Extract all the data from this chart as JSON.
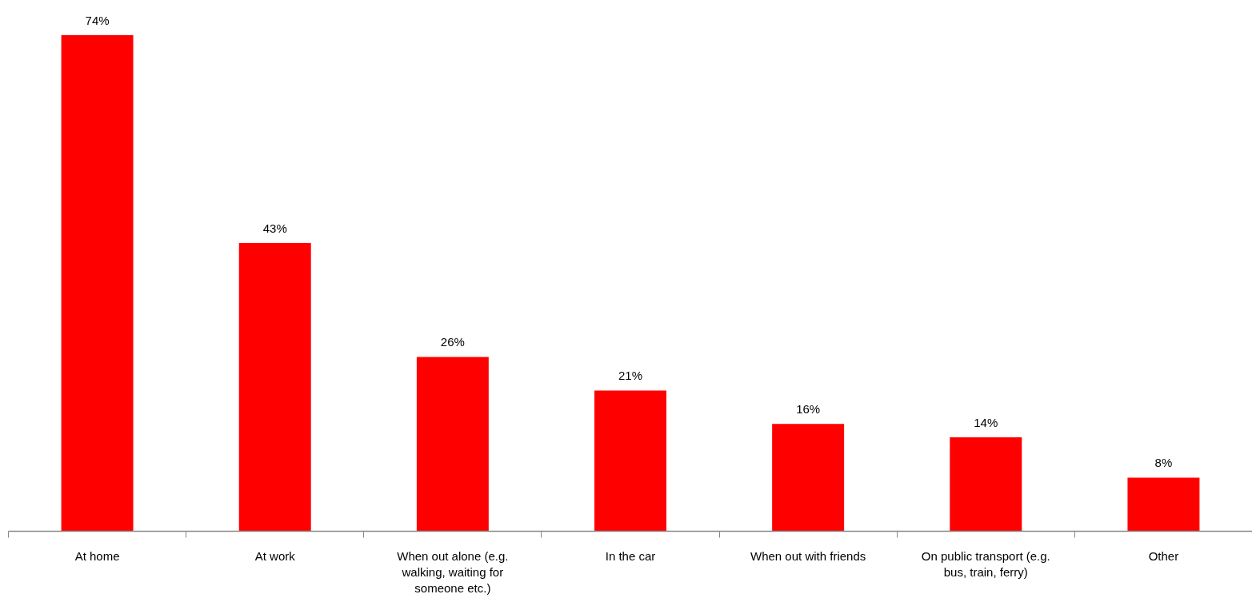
{
  "chart_data": {
    "type": "bar",
    "categories": [
      "At home",
      "At work",
      "When out alone (e.g. walking, waiting for someone etc.)",
      "In the car",
      "When out with friends",
      "On public transport (e.g. bus, train, ferry)",
      "Other"
    ],
    "values": [
      74,
      43,
      26,
      21,
      16,
      14,
      8
    ],
    "value_labels": [
      "74%",
      "43%",
      "26%",
      "21%",
      "16%",
      "14%",
      "8%"
    ],
    "color": "#ff0000"
  }
}
